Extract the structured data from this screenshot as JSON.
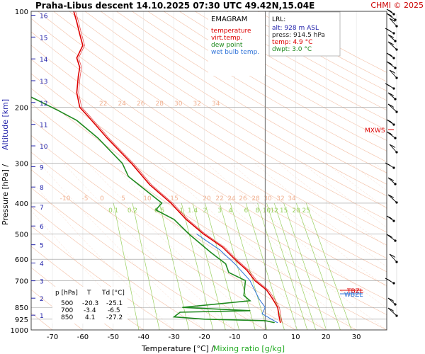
{
  "header": {
    "title": "Praha-Libus   descent   14.10.2025 07:30 UTC  49.42N,15.04E",
    "credit": "CHMI © 2025"
  },
  "legend": {
    "title": "EMAGRAM",
    "items": [
      {
        "label": "temperature",
        "color": "#dd0000"
      },
      {
        "label": "virt.temp.",
        "color": "#dd0000"
      },
      {
        "label": "dew point",
        "color": "#1f8a1f"
      },
      {
        "label": "wet bulb temp.",
        "color": "#2f73d8"
      }
    ]
  },
  "lrl": {
    "title": "LRL:",
    "lines": [
      {
        "text": "alt: 928 m ASL",
        "color": "#2222aa"
      },
      {
        "text": "press: 914.5 hPa",
        "color": "#222222"
      },
      {
        "text": "temp: 4.9 °C",
        "color": "#dd0000"
      },
      {
        "text": "dwpt: 3.0 °C",
        "color": "#1f8a1f"
      }
    ]
  },
  "table": {
    "headers": [
      "p [hPa]",
      "T",
      "Td [°C]"
    ],
    "rows": [
      [
        "500",
        "-20.3",
        "-25.1"
      ],
      [
        "700",
        "-3.4",
        "-6.5"
      ],
      [
        "850",
        "4.1",
        "-27.2"
      ]
    ]
  },
  "annotations": {
    "mxws": "MXWS",
    "wbzl": "WBZL",
    "tbz": "TBZL"
  },
  "colors": {
    "temperature": "#dd0000",
    "dewpoint": "#1f8a1f",
    "wetbulb": "#2f73d8",
    "dry_adiabat": "#f0b090",
    "mixing_ratio": "#9ad060",
    "altitude": "#2222aa",
    "grid": "#999999"
  },
  "chart_data": {
    "type": "line",
    "title": "Praha-Libus   descent   14.10.2025 07:30 UTC  49.42N,15.04E",
    "xlabel": "Temperature [°C]  /",
    "xlabel2": "Mixing ratio [g/kg]",
    "ylabel": "Pressure [hPa]  /",
    "ylabel2": "Altitude [km]",
    "x_ticks": [
      "-70",
      "-60",
      "-50",
      "-40",
      "-30",
      "-20",
      "-10",
      "0",
      "10",
      "20",
      "30"
    ],
    "xlim": [
      -77,
      40
    ],
    "y_scale": "log",
    "ylim": [
      1000,
      100
    ],
    "pressure_ticks": [
      "100",
      "200",
      "300",
      "400",
      "500",
      "600",
      "700",
      "850",
      "925",
      "1000"
    ],
    "altitude_ticks": [
      "1",
      "2",
      "3",
      "4",
      "5",
      "6",
      "7",
      "8",
      "9",
      "10",
      "11",
      "12",
      "13",
      "14",
      "15",
      "16"
    ],
    "mixing_ratio_values": [
      "0.1",
      "0.2",
      "0.5",
      "1",
      "1.4",
      "2",
      "3",
      "4",
      "6",
      "8",
      "10",
      "12",
      "15",
      "20",
      "25"
    ],
    "adiabat_labels_upper": [
      "22",
      "24",
      "26",
      "28",
      "30",
      "32",
      "34"
    ],
    "adiabat_labels_lower": [
      "-10",
      "-5",
      "0",
      "5",
      "10",
      "15",
      "20",
      "22",
      "24",
      "26",
      "28",
      "30",
      "32",
      "34"
    ],
    "series": [
      {
        "name": "temperature",
        "points": [
          [
            5.0,
            948
          ],
          [
            4.5,
            900
          ],
          [
            4.1,
            850
          ],
          [
            2.5,
            800
          ],
          [
            0.5,
            750
          ],
          [
            -3.4,
            700
          ],
          [
            -6,
            650
          ],
          [
            -10,
            600
          ],
          [
            -14,
            550
          ],
          [
            -20.3,
            500
          ],
          [
            -26,
            450
          ],
          [
            -31,
            400
          ],
          [
            -38,
            350
          ],
          [
            -44,
            300
          ],
          [
            -52,
            250
          ],
          [
            -58,
            215
          ],
          [
            -61,
            200
          ],
          [
            -62,
            180
          ],
          [
            -61.5,
            160
          ],
          [
            -61,
            150
          ],
          [
            -62,
            140
          ],
          [
            -60,
            128
          ],
          [
            -61,
            118
          ],
          [
            -62,
            108
          ],
          [
            -63,
            100
          ]
        ]
      },
      {
        "name": "dew point",
        "points": [
          [
            3.0,
            948
          ],
          [
            0,
            935
          ],
          [
            -20,
            925
          ],
          [
            -30,
            910
          ],
          [
            -28,
            880
          ],
          [
            -5,
            870
          ],
          [
            -27.2,
            850
          ],
          [
            -5,
            810
          ],
          [
            -7,
            780
          ],
          [
            -6.5,
            700
          ],
          [
            -12,
            660
          ],
          [
            -13,
            620
          ],
          [
            -18,
            570
          ],
          [
            -25.1,
            500
          ],
          [
            -30,
            450
          ],
          [
            -36,
            420
          ],
          [
            -34,
            400
          ],
          [
            -45,
            330
          ],
          [
            -47,
            300
          ],
          [
            -55,
            250
          ],
          [
            -62,
            220
          ],
          [
            -68,
            205
          ],
          [
            -75,
            190
          ],
          [
            -80,
            180
          ]
        ]
      },
      {
        "name": "wet bulb temp.",
        "points": [
          [
            4.0,
            948
          ],
          [
            2,
            925
          ],
          [
            -1,
            890
          ],
          [
            0,
            850
          ],
          [
            -2,
            800
          ],
          [
            -5,
            700
          ],
          [
            -10,
            620
          ],
          [
            -15,
            560
          ],
          [
            -20,
            520
          ],
          [
            -22.5,
            500
          ]
        ]
      }
    ]
  }
}
